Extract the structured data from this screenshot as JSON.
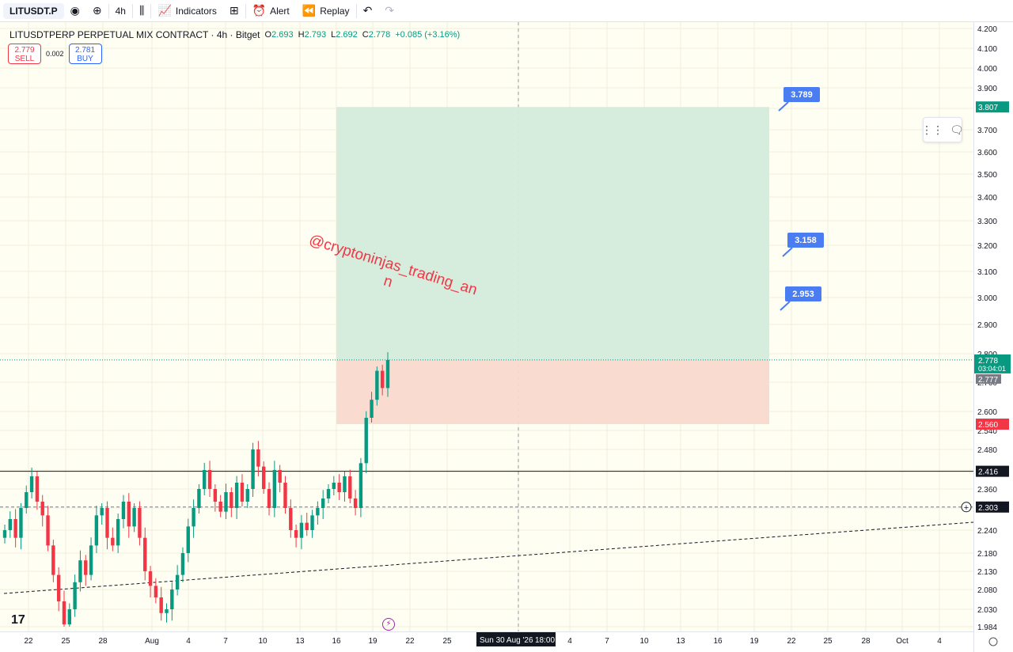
{
  "toolbar": {
    "symbol": "LITUSDT.P",
    "interval": "4h",
    "indicators_label": "Indicators",
    "alert_label": "Alert",
    "replay_label": "Replay",
    "icons": [
      "eye-icon",
      "plus-circle-icon",
      "candles-icon",
      "indicators-icon",
      "layout-icon",
      "alert-icon",
      "replay-icon",
      "undo-icon",
      "redo-icon"
    ]
  },
  "legend": {
    "title": "LITUSDTPERP PERPETUAL MIX CONTRACT · 4h · Bitget",
    "open_label": "O",
    "open": "2.693",
    "high_label": "H",
    "high": "2.793",
    "low_label": "L",
    "low": "2.692",
    "close_label": "C",
    "close": "2.778",
    "change": "+0.085 (+3.16%)"
  },
  "trade": {
    "sell_price": "2.779",
    "sell_label": "SELL",
    "spread": "0.002",
    "buy_price": "2.781",
    "buy_label": "BUY"
  },
  "logo": "17",
  "watermark": {
    "line1": "@cryptoninjas_trading_an",
    "line2": "n"
  },
  "colors": {
    "up": "#089981",
    "down": "#f23645",
    "background": "#fffef2",
    "profit_zone": "#d4ecdc",
    "loss_zone": "#f9d9cd",
    "label_blue": "#4a7cf2"
  },
  "chart_data": {
    "type": "candlestick",
    "symbol": "LITUSDTPERP",
    "interval": "4h",
    "y_ticks": [
      "4.200",
      "4.100",
      "4.000",
      "3.900",
      "3.800",
      "3.700",
      "3.600",
      "3.500",
      "3.400",
      "3.300",
      "3.200",
      "3.100",
      "3.000",
      "2.900",
      "2.800",
      "2.700",
      "2.600",
      "2.540",
      "2.480",
      "2.420",
      "2.360",
      "2.300",
      "2.240",
      "2.180",
      "2.130",
      "2.080",
      "2.030",
      "1.984"
    ],
    "x_ticks": [
      "22",
      "25",
      "28",
      "Aug",
      "4",
      "7",
      "10",
      "13",
      "16",
      "19",
      "22",
      "25",
      "Sun 30 Aug '26",
      "18:00",
      "4",
      "7",
      "10",
      "13",
      "16",
      "19",
      "22",
      "25",
      "28",
      "Oct",
      "4"
    ],
    "current_price": "2.778",
    "countdown": "03:04:01",
    "prev_close": "2.777",
    "take_profit": "3.807",
    "stop_loss": "2.560",
    "horizontal_line": "2.416",
    "dashed_level": "2.303",
    "callouts": [
      "3.789",
      "3.158",
      "2.953"
    ],
    "close_path": [
      2.24,
      2.27,
      2.22,
      2.3,
      2.35,
      2.4,
      2.32,
      2.28,
      2.2,
      2.12,
      2.05,
      1.99,
      2.03,
      2.1,
      2.16,
      2.12,
      2.2,
      2.28,
      2.3,
      2.22,
      2.2,
      2.27,
      2.32,
      2.25,
      2.3,
      2.22,
      2.13,
      2.09,
      2.06,
      2.02,
      2.03,
      2.08,
      2.12,
      2.18,
      2.25,
      2.3,
      2.36,
      2.42,
      2.36,
      2.32,
      2.29,
      2.35,
      2.3,
      2.38,
      2.32,
      2.36,
      2.48,
      2.43,
      2.36,
      2.3,
      2.42,
      2.38,
      2.3,
      2.24,
      2.22,
      2.26,
      2.24,
      2.28,
      2.3,
      2.33,
      2.36,
      2.38,
      2.35,
      2.4,
      2.33,
      2.3,
      2.44,
      2.58,
      2.64,
      2.74,
      2.68,
      2.778
    ]
  }
}
